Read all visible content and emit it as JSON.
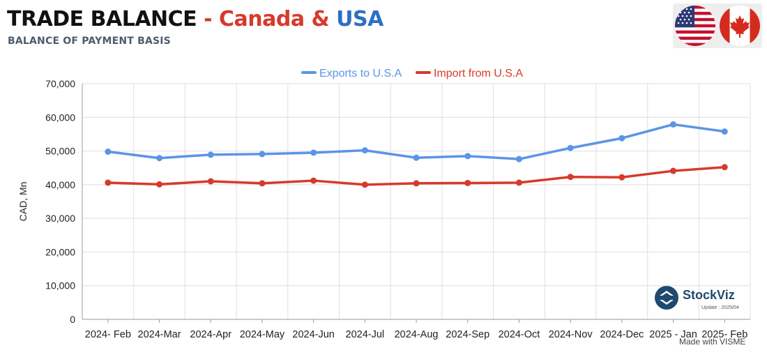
{
  "header": {
    "title_main": "TRADE BALANCE",
    "title_dash": " - ",
    "title_country1": "Canada",
    "title_amp": " & ",
    "title_country2": "USA",
    "subtitle": "BALANCE OF PAYMENT BASIS"
  },
  "flags": {
    "left": "usa-flag-icon",
    "right": "canada-flag-icon"
  },
  "branding": {
    "logo_name": "StockViz",
    "logo_update": "Update : 2025/04",
    "watermark": "Made with VISME"
  },
  "chart_data": {
    "type": "line",
    "title": "",
    "xlabel": "",
    "ylabel": "CAD, Mn",
    "ylim": [
      0,
      70000
    ],
    "yticks": [
      0,
      10000,
      20000,
      30000,
      40000,
      50000,
      60000,
      70000
    ],
    "ytick_labels": [
      "0",
      "10,000",
      "20,000",
      "30,000",
      "40,000",
      "50,000",
      "60,000",
      "70,000"
    ],
    "grid": true,
    "legend_position": "top-center",
    "categories": [
      "2024- Feb",
      "2024-Mar",
      "2024-Apr",
      "2024-May",
      "2024-Jun",
      "2024-Jul",
      "2024-Aug",
      "2024-Sep",
      "2024-Oct",
      "2024-Nov",
      "2024-Dec",
      "2025 - Jan",
      "2025- Feb"
    ],
    "series": [
      {
        "name": "Exports to U.S.A",
        "color": "#5b95e5",
        "values": [
          49800,
          47900,
          48900,
          49100,
          49500,
          50200,
          48000,
          48500,
          47600,
          50900,
          53800,
          57900,
          55800
        ]
      },
      {
        "name": "Import from U.S.A",
        "color": "#d63a2b",
        "values": [
          40600,
          40100,
          41000,
          40400,
          41200,
          40000,
          40400,
          40500,
          40600,
          42300,
          42200,
          44100,
          45200
        ]
      }
    ]
  }
}
